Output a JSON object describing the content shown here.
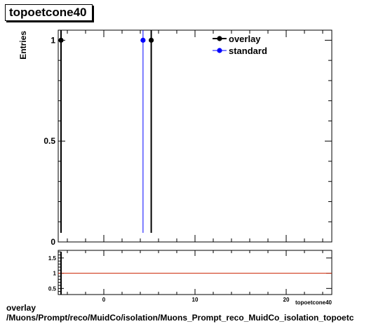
{
  "title": "topoetcone40",
  "footer": {
    "line1": "overlay",
    "line2": "/Muons/Prompt/reco/MuidCo/isolation/Muons_Prompt_reco_MuidCo_isolation_topoetc"
  },
  "colors": {
    "overlay": "#000000",
    "standard": "#0000ff",
    "ratio_line": "#cc2200"
  },
  "chart_data": [
    {
      "type": "scatter",
      "title": "topoetcone40",
      "xlabel": "topoetcone40",
      "ylabel": "Entries",
      "xlim": [
        -5,
        25
      ],
      "ylim": [
        0,
        1.05
      ],
      "x_ticks": [
        0,
        10,
        20
      ],
      "y_ticks": [
        0,
        0.5,
        1
      ],
      "y_tick_labels": [
        "0",
        "0.5",
        "1"
      ],
      "legend_position": "top-right",
      "series": [
        {
          "name": "overlay",
          "x": [
            5.2
          ],
          "y": [
            1
          ]
        },
        {
          "name": "standard",
          "x": [
            4.3
          ],
          "y": [
            1
          ]
        }
      ],
      "grid": false
    },
    {
      "type": "line",
      "xlim": [
        -5,
        25
      ],
      "ylim": [
        0.3,
        1.75
      ],
      "x_ticks": [
        0,
        10,
        20
      ],
      "x_tick_labels": [
        "0",
        "10",
        "20"
      ],
      "y_ticks": [
        0.5,
        1,
        1.5
      ],
      "y_tick_labels": [
        "0.5",
        "1",
        "1.5"
      ],
      "reference_line": 1,
      "grid": false
    }
  ]
}
